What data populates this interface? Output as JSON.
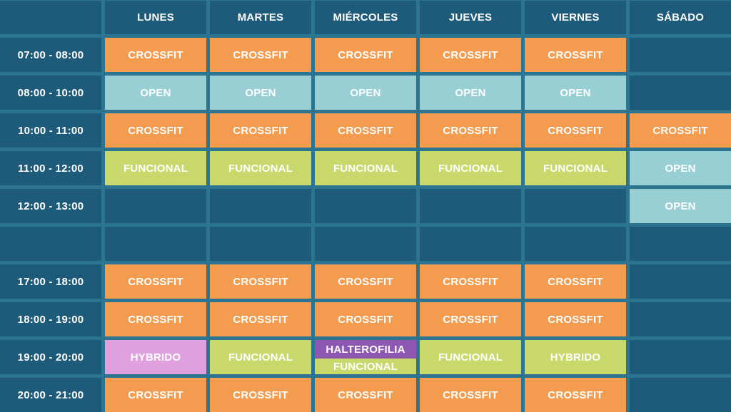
{
  "corner": "",
  "days": [
    "LUNES",
    "MARTES",
    "MIÉRCOLES",
    "JUEVES",
    "VIERNES",
    "SÁBADO"
  ],
  "rows": [
    {
      "time": "07:00 - 08:00",
      "cells": [
        {
          "label": "CROSSFIT",
          "type": "crossfit"
        },
        {
          "label": "CROSSFIT",
          "type": "crossfit"
        },
        {
          "label": "CROSSFIT",
          "type": "crossfit"
        },
        {
          "label": "CROSSFIT",
          "type": "crossfit"
        },
        {
          "label": "CROSSFIT",
          "type": "crossfit"
        },
        {
          "label": "",
          "type": "empty"
        }
      ]
    },
    {
      "time": "08:00 - 10:00",
      "cells": [
        {
          "label": "OPEN",
          "type": "open"
        },
        {
          "label": "OPEN",
          "type": "open"
        },
        {
          "label": "OPEN",
          "type": "open"
        },
        {
          "label": "OPEN",
          "type": "open"
        },
        {
          "label": "OPEN",
          "type": "open"
        },
        {
          "label": "",
          "type": "empty"
        }
      ]
    },
    {
      "time": "10:00 - 11:00",
      "cells": [
        {
          "label": "CROSSFIT",
          "type": "crossfit"
        },
        {
          "label": "CROSSFIT",
          "type": "crossfit"
        },
        {
          "label": "CROSSFIT",
          "type": "crossfit"
        },
        {
          "label": "CROSSFIT",
          "type": "crossfit"
        },
        {
          "label": "CROSSFIT",
          "type": "crossfit"
        },
        {
          "label": "CROSSFIT",
          "type": "crossfit"
        }
      ]
    },
    {
      "time": "11:00 - 12:00",
      "cells": [
        {
          "label": "FUNCIONAL",
          "type": "funcional"
        },
        {
          "label": "FUNCIONAL",
          "type": "funcional"
        },
        {
          "label": "FUNCIONAL",
          "type": "funcional"
        },
        {
          "label": "FUNCIONAL",
          "type": "funcional"
        },
        {
          "label": "FUNCIONAL",
          "type": "funcional"
        },
        {
          "label": "OPEN",
          "type": "open"
        }
      ]
    },
    {
      "time": "12:00 - 13:00",
      "cells": [
        {
          "label": "",
          "type": "empty"
        },
        {
          "label": "",
          "type": "empty"
        },
        {
          "label": "",
          "type": "empty"
        },
        {
          "label": "",
          "type": "empty"
        },
        {
          "label": "",
          "type": "empty"
        },
        {
          "label": "OPEN",
          "type": "open"
        }
      ]
    },
    {
      "time": "",
      "cells": [
        {
          "label": "",
          "type": "empty"
        },
        {
          "label": "",
          "type": "empty"
        },
        {
          "label": "",
          "type": "empty"
        },
        {
          "label": "",
          "type": "empty"
        },
        {
          "label": "",
          "type": "empty"
        },
        {
          "label": "",
          "type": "empty"
        }
      ]
    },
    {
      "time": "17:00 - 18:00",
      "cells": [
        {
          "label": "CROSSFIT",
          "type": "crossfit"
        },
        {
          "label": "CROSSFIT",
          "type": "crossfit"
        },
        {
          "label": "CROSSFIT",
          "type": "crossfit"
        },
        {
          "label": "CROSSFIT",
          "type": "crossfit"
        },
        {
          "label": "CROSSFIT",
          "type": "crossfit"
        },
        {
          "label": "",
          "type": "empty"
        }
      ]
    },
    {
      "time": "18:00 - 19:00",
      "cells": [
        {
          "label": "CROSSFIT",
          "type": "crossfit"
        },
        {
          "label": "CROSSFIT",
          "type": "crossfit"
        },
        {
          "label": "CROSSFIT",
          "type": "crossfit"
        },
        {
          "label": "CROSSFIT",
          "type": "crossfit"
        },
        {
          "label": "CROSSFIT",
          "type": "crossfit"
        },
        {
          "label": "",
          "type": "empty"
        }
      ]
    },
    {
      "time": "19:00 - 20:00",
      "cells": [
        {
          "label": "HYBRIDO",
          "type": "hybrido"
        },
        {
          "label": "FUNCIONAL",
          "type": "funcional"
        },
        {
          "label": "HALTEROFILIA",
          "sublabel": "FUNCIONAL",
          "type": "split"
        },
        {
          "label": "FUNCIONAL",
          "type": "funcional"
        },
        {
          "label": "HYBRIDO",
          "type": "funcional"
        },
        {
          "label": "",
          "type": "empty"
        }
      ]
    },
    {
      "time": "20:00 - 21:00",
      "cells": [
        {
          "label": "CROSSFIT",
          "type": "crossfit"
        },
        {
          "label": "CROSSFIT",
          "type": "crossfit"
        },
        {
          "label": "CROSSFIT",
          "type": "crossfit"
        },
        {
          "label": "CROSSFIT",
          "type": "crossfit"
        },
        {
          "label": "CROSSFIT",
          "type": "crossfit"
        },
        {
          "label": "",
          "type": "empty"
        }
      ]
    }
  ],
  "colors": {
    "background": "#2c7592",
    "cell_dark": "#1e5b7a",
    "crossfit": "#f39c4f",
    "open": "#97cfd4",
    "funcional": "#c9d86a",
    "hybrido": "#e0a0de",
    "halterofilia": "#8e58b2"
  }
}
